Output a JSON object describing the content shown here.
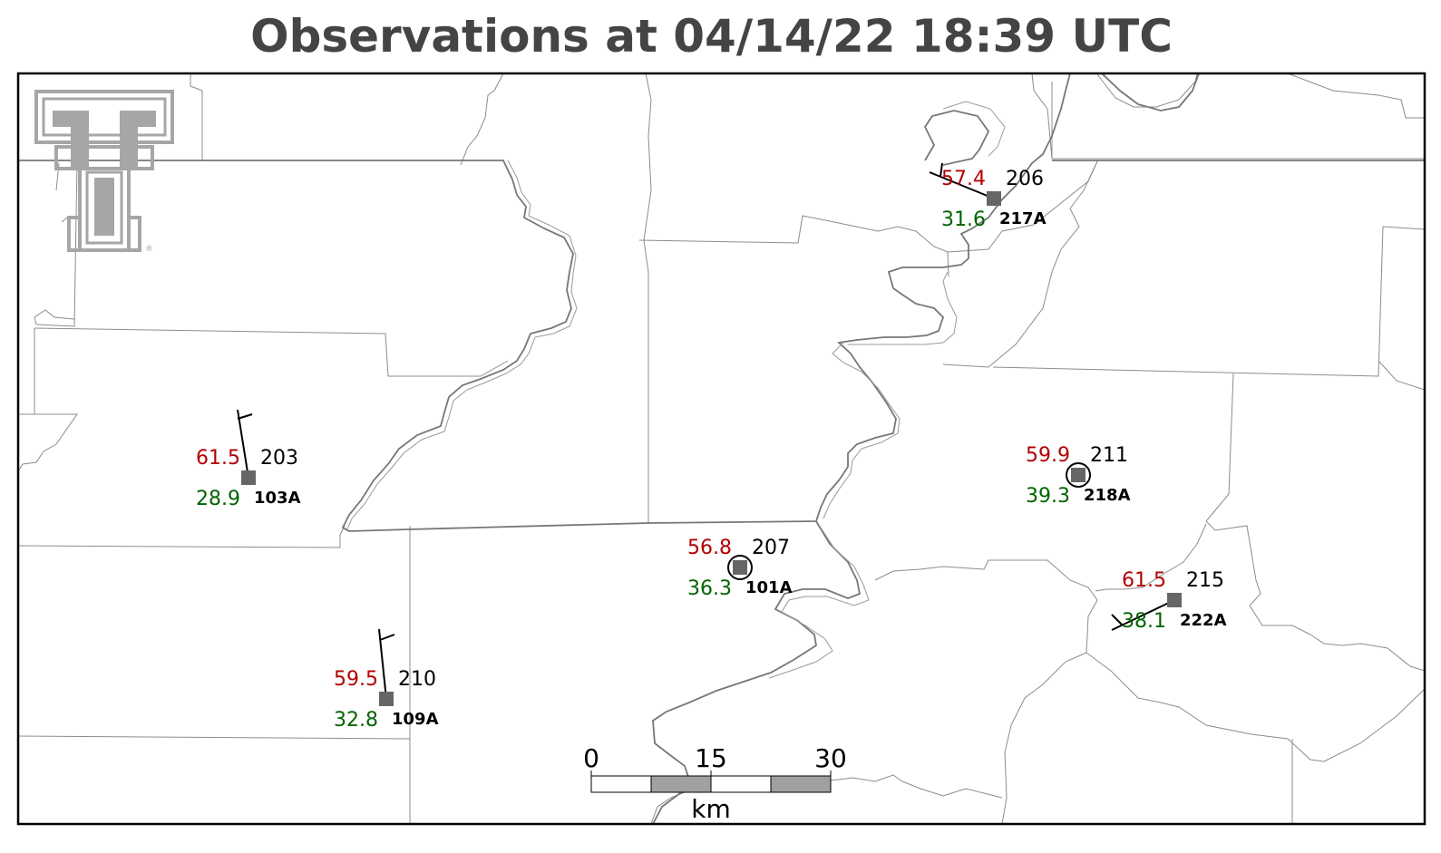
{
  "title": "Observations at 04/14/22 18:39 UTC",
  "colors": {
    "temperature": "#b30000",
    "dewpoint": "#006400",
    "station_marker": "#666666",
    "county_lines": "#888888",
    "state_lines": "#777777",
    "logo": "#a6a6a6"
  },
  "logo": {
    "name": "texas-tech-double-t-logo",
    "text": "®"
  },
  "stations": [
    {
      "id": "103A",
      "temperature": "61.5",
      "dewpoint": "28.9",
      "wind_dir": "203",
      "barb": "half"
    },
    {
      "id": "109A",
      "temperature": "59.5",
      "dewpoint": "32.8",
      "wind_dir": "210",
      "barb": "half"
    },
    {
      "id": "101A",
      "temperature": "56.8",
      "dewpoint": "36.3",
      "wind_dir": "207",
      "barb": "calm"
    },
    {
      "id": "217A",
      "temperature": "57.4",
      "dewpoint": "31.6",
      "wind_dir": "206",
      "barb": "staff"
    },
    {
      "id": "218A",
      "temperature": "59.9",
      "dewpoint": "39.3",
      "wind_dir": "211",
      "barb": "calm"
    },
    {
      "id": "222A",
      "temperature": "61.5",
      "dewpoint": "38.1",
      "wind_dir": "215",
      "barb": "staff"
    }
  ],
  "scale_bar": {
    "labels": [
      "0",
      "15",
      "30"
    ],
    "unit": "km"
  }
}
